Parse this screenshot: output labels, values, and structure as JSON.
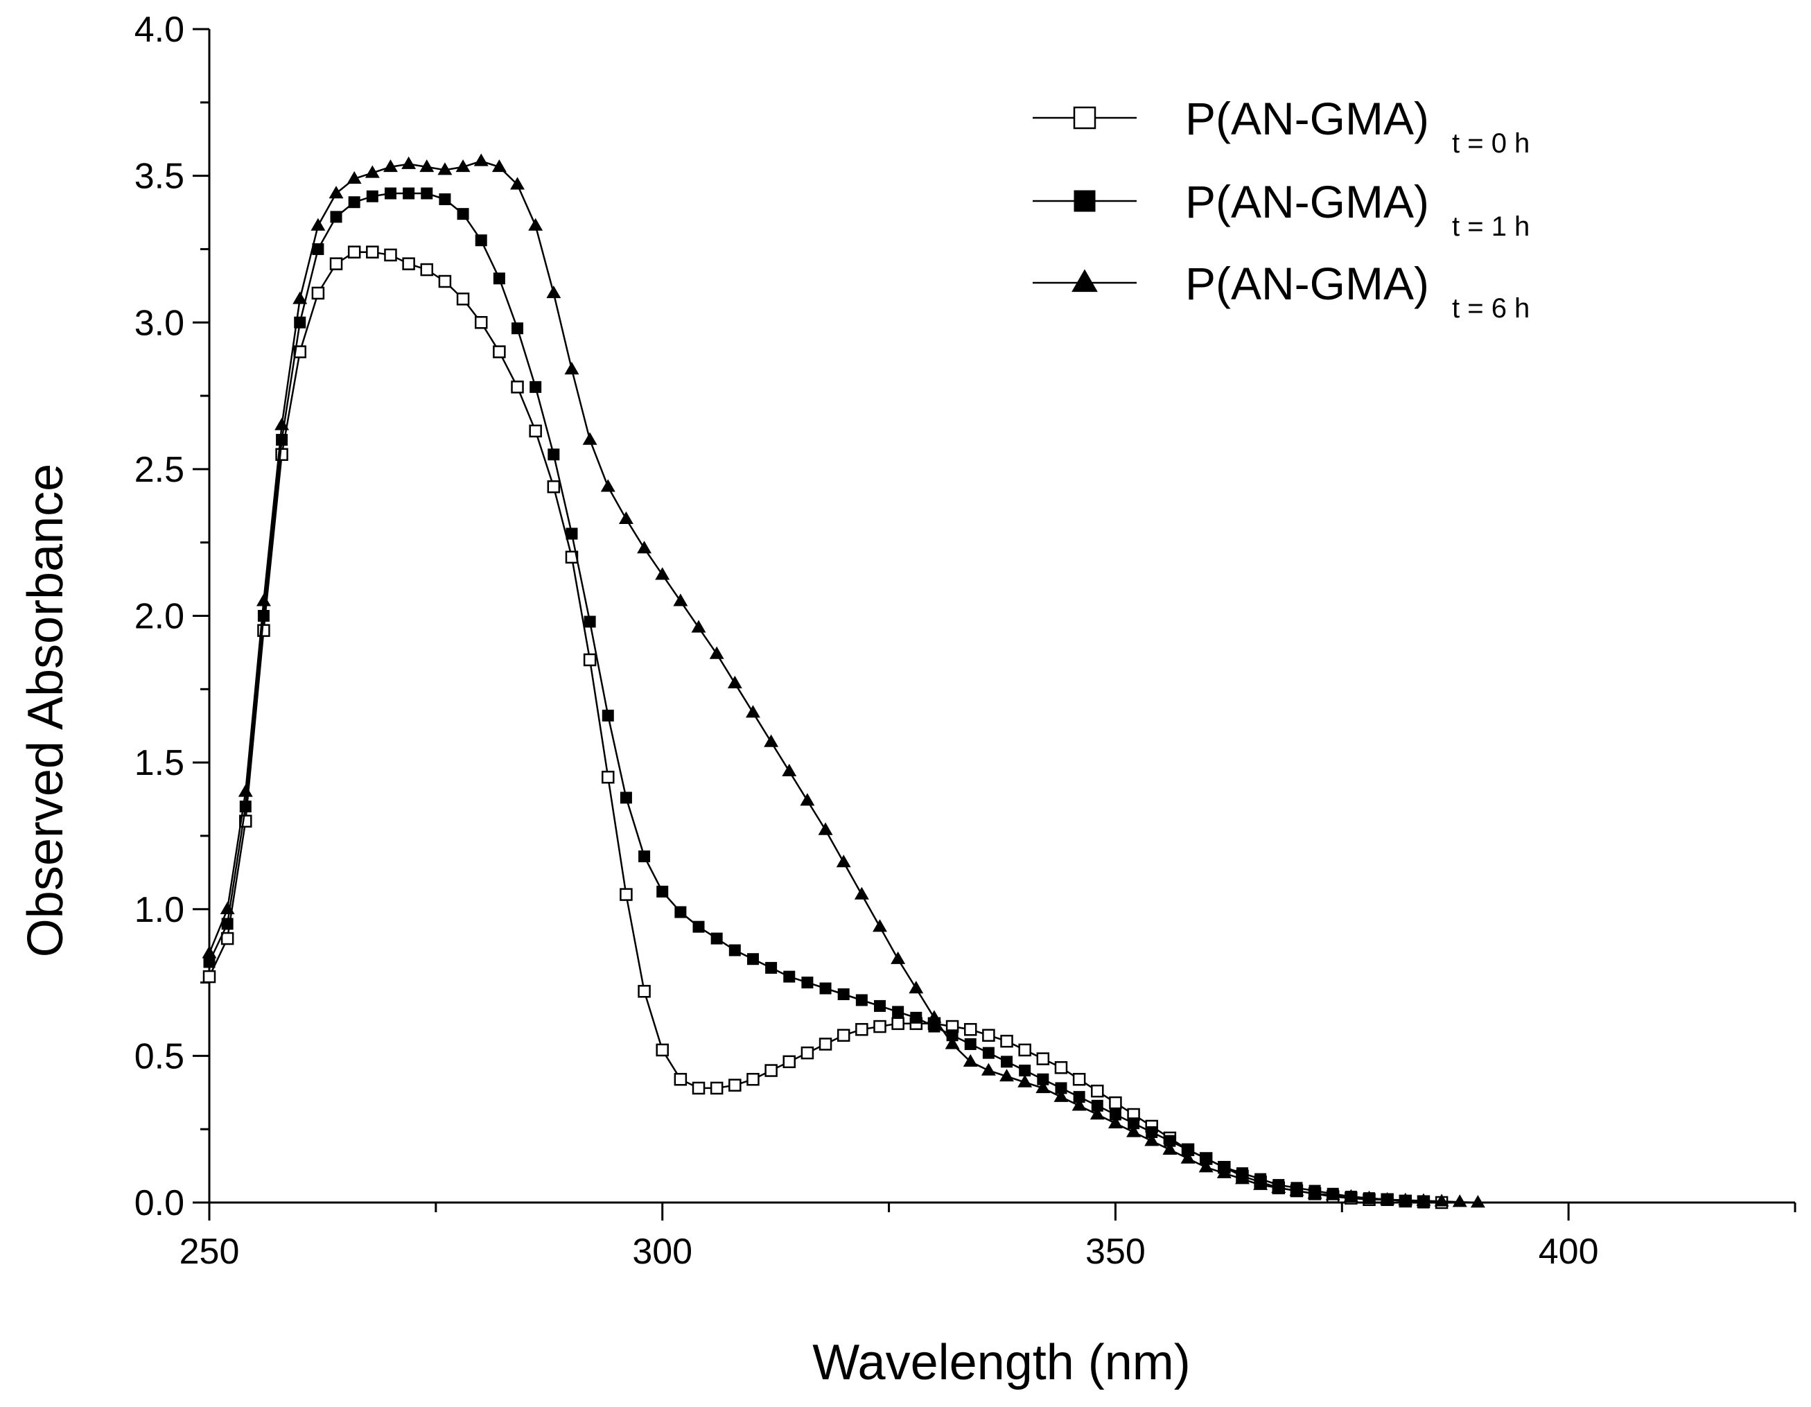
{
  "chart_data": {
    "type": "line",
    "title": "",
    "xlabel": "Wavelength (nm)",
    "ylabel": "Observed Absorbance",
    "xlim": [
      250,
      425
    ],
    "ylim": [
      0.0,
      4.0
    ],
    "x_ticks": [
      250,
      300,
      350,
      400
    ],
    "x_tick_labels": [
      "250",
      "300",
      "350",
      "400"
    ],
    "y_ticks": [
      0.0,
      0.5,
      1.0,
      1.5,
      2.0,
      2.5,
      3.0,
      3.5,
      4.0
    ],
    "y_tick_labels": [
      "0.0",
      "0.5",
      "1.0",
      "1.5",
      "2.0",
      "2.5",
      "3.0",
      "3.5",
      "4.0"
    ],
    "grid": false,
    "legend_position": "top-right",
    "series": [
      {
        "name": "P(AN-GMA) t = 0 h",
        "label_main": "P(AN-GMA)",
        "label_sub": "t = 0 h",
        "marker": "open-square",
        "color": "#000000",
        "points": [
          [
            250,
            0.77
          ],
          [
            252,
            0.9
          ],
          [
            254,
            1.3
          ],
          [
            256,
            1.95
          ],
          [
            258,
            2.55
          ],
          [
            260,
            2.9
          ],
          [
            262,
            3.1
          ],
          [
            264,
            3.2
          ],
          [
            266,
            3.24
          ],
          [
            268,
            3.24
          ],
          [
            270,
            3.23
          ],
          [
            272,
            3.2
          ],
          [
            274,
            3.18
          ],
          [
            276,
            3.14
          ],
          [
            278,
            3.08
          ],
          [
            280,
            3.0
          ],
          [
            282,
            2.9
          ],
          [
            284,
            2.78
          ],
          [
            286,
            2.63
          ],
          [
            288,
            2.44
          ],
          [
            290,
            2.2
          ],
          [
            292,
            1.85
          ],
          [
            294,
            1.45
          ],
          [
            296,
            1.05
          ],
          [
            298,
            0.72
          ],
          [
            300,
            0.52
          ],
          [
            302,
            0.42
          ],
          [
            304,
            0.39
          ],
          [
            306,
            0.39
          ],
          [
            308,
            0.4
          ],
          [
            310,
            0.42
          ],
          [
            312,
            0.45
          ],
          [
            314,
            0.48
          ],
          [
            316,
            0.51
          ],
          [
            318,
            0.54
          ],
          [
            320,
            0.57
          ],
          [
            322,
            0.59
          ],
          [
            324,
            0.6
          ],
          [
            326,
            0.61
          ],
          [
            328,
            0.61
          ],
          [
            330,
            0.61
          ],
          [
            332,
            0.6
          ],
          [
            334,
            0.59
          ],
          [
            336,
            0.57
          ],
          [
            338,
            0.55
          ],
          [
            340,
            0.52
          ],
          [
            342,
            0.49
          ],
          [
            344,
            0.46
          ],
          [
            346,
            0.42
          ],
          [
            348,
            0.38
          ],
          [
            350,
            0.34
          ],
          [
            352,
            0.3
          ],
          [
            354,
            0.26
          ],
          [
            356,
            0.22
          ],
          [
            358,
            0.18
          ],
          [
            360,
            0.15
          ],
          [
            362,
            0.12
          ],
          [
            364,
            0.09
          ],
          [
            366,
            0.07
          ],
          [
            368,
            0.05
          ],
          [
            370,
            0.04
          ],
          [
            372,
            0.03
          ],
          [
            374,
            0.02
          ],
          [
            376,
            0.015
          ],
          [
            378,
            0.01
          ],
          [
            380,
            0.01
          ],
          [
            382,
            0.005
          ],
          [
            384,
            0.003
          ],
          [
            386,
            0.0
          ]
        ]
      },
      {
        "name": "P(AN-GMA) t = 1 h",
        "label_main": "P(AN-GMA)",
        "label_sub": "t = 1 h",
        "marker": "filled-square",
        "color": "#000000",
        "points": [
          [
            250,
            0.82
          ],
          [
            252,
            0.95
          ],
          [
            254,
            1.35
          ],
          [
            256,
            2.0
          ],
          [
            258,
            2.6
          ],
          [
            260,
            3.0
          ],
          [
            262,
            3.25
          ],
          [
            264,
            3.36
          ],
          [
            266,
            3.41
          ],
          [
            268,
            3.43
          ],
          [
            270,
            3.44
          ],
          [
            272,
            3.44
          ],
          [
            274,
            3.44
          ],
          [
            276,
            3.42
          ],
          [
            278,
            3.37
          ],
          [
            280,
            3.28
          ],
          [
            282,
            3.15
          ],
          [
            284,
            2.98
          ],
          [
            286,
            2.78
          ],
          [
            288,
            2.55
          ],
          [
            290,
            2.28
          ],
          [
            292,
            1.98
          ],
          [
            294,
            1.66
          ],
          [
            296,
            1.38
          ],
          [
            298,
            1.18
          ],
          [
            300,
            1.06
          ],
          [
            302,
            0.99
          ],
          [
            304,
            0.94
          ],
          [
            306,
            0.9
          ],
          [
            308,
            0.86
          ],
          [
            310,
            0.83
          ],
          [
            312,
            0.8
          ],
          [
            314,
            0.77
          ],
          [
            316,
            0.75
          ],
          [
            318,
            0.73
          ],
          [
            320,
            0.71
          ],
          [
            322,
            0.69
          ],
          [
            324,
            0.67
          ],
          [
            326,
            0.65
          ],
          [
            328,
            0.63
          ],
          [
            330,
            0.6
          ],
          [
            332,
            0.57
          ],
          [
            334,
            0.54
          ],
          [
            336,
            0.51
          ],
          [
            338,
            0.48
          ],
          [
            340,
            0.45
          ],
          [
            342,
            0.42
          ],
          [
            344,
            0.39
          ],
          [
            346,
            0.36
          ],
          [
            348,
            0.33
          ],
          [
            350,
            0.3
          ],
          [
            352,
            0.27
          ],
          [
            354,
            0.24
          ],
          [
            356,
            0.21
          ],
          [
            358,
            0.18
          ],
          [
            360,
            0.15
          ],
          [
            362,
            0.12
          ],
          [
            364,
            0.1
          ],
          [
            366,
            0.08
          ],
          [
            368,
            0.06
          ],
          [
            370,
            0.05
          ],
          [
            372,
            0.04
          ],
          [
            374,
            0.03
          ],
          [
            376,
            0.02
          ],
          [
            378,
            0.015
          ],
          [
            380,
            0.01
          ],
          [
            382,
            0.005
          ],
          [
            384,
            0.0
          ]
        ]
      },
      {
        "name": "P(AN-GMA) t = 6 h",
        "label_main": "P(AN-GMA)",
        "label_sub": "t = 6 h",
        "marker": "filled-triangle",
        "color": "#000000",
        "points": [
          [
            250,
            0.85
          ],
          [
            252,
            1.0
          ],
          [
            254,
            1.4
          ],
          [
            256,
            2.05
          ],
          [
            258,
            2.65
          ],
          [
            260,
            3.08
          ],
          [
            262,
            3.33
          ],
          [
            264,
            3.44
          ],
          [
            266,
            3.49
          ],
          [
            268,
            3.51
          ],
          [
            270,
            3.53
          ],
          [
            272,
            3.54
          ],
          [
            274,
            3.53
          ],
          [
            276,
            3.52
          ],
          [
            278,
            3.53
          ],
          [
            280,
            3.55
          ],
          [
            282,
            3.53
          ],
          [
            284,
            3.47
          ],
          [
            286,
            3.33
          ],
          [
            288,
            3.1
          ],
          [
            290,
            2.84
          ],
          [
            292,
            2.6
          ],
          [
            294,
            2.44
          ],
          [
            296,
            2.33
          ],
          [
            298,
            2.23
          ],
          [
            300,
            2.14
          ],
          [
            302,
            2.05
          ],
          [
            304,
            1.96
          ],
          [
            306,
            1.87
          ],
          [
            308,
            1.77
          ],
          [
            310,
            1.67
          ],
          [
            312,
            1.57
          ],
          [
            314,
            1.47
          ],
          [
            316,
            1.37
          ],
          [
            318,
            1.27
          ],
          [
            320,
            1.16
          ],
          [
            322,
            1.05
          ],
          [
            324,
            0.94
          ],
          [
            326,
            0.83
          ],
          [
            328,
            0.73
          ],
          [
            330,
            0.63
          ],
          [
            332,
            0.54
          ],
          [
            334,
            0.48
          ],
          [
            336,
            0.45
          ],
          [
            338,
            0.43
          ],
          [
            340,
            0.41
          ],
          [
            342,
            0.39
          ],
          [
            344,
            0.36
          ],
          [
            346,
            0.33
          ],
          [
            348,
            0.3
          ],
          [
            350,
            0.27
          ],
          [
            352,
            0.24
          ],
          [
            354,
            0.21
          ],
          [
            356,
            0.18
          ],
          [
            358,
            0.15
          ],
          [
            360,
            0.12
          ],
          [
            362,
            0.1
          ],
          [
            364,
            0.08
          ],
          [
            366,
            0.06
          ],
          [
            368,
            0.05
          ],
          [
            370,
            0.04
          ],
          [
            372,
            0.03
          ],
          [
            374,
            0.025
          ],
          [
            376,
            0.02
          ],
          [
            378,
            0.015
          ],
          [
            380,
            0.01
          ],
          [
            382,
            0.008
          ],
          [
            384,
            0.006
          ],
          [
            386,
            0.004
          ],
          [
            388,
            0.002
          ],
          [
            390,
            0.0
          ]
        ]
      }
    ]
  }
}
